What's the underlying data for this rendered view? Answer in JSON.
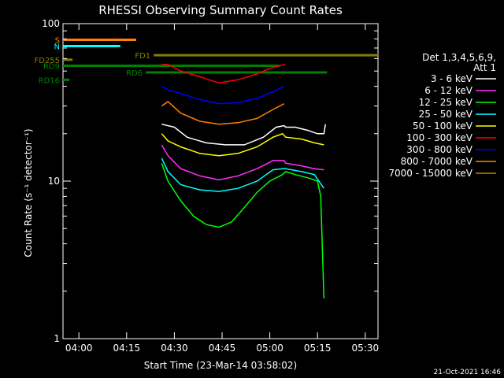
{
  "chart_data": {
    "type": "line",
    "title": "RHESSI Observing Summary Count Rates",
    "xlabel": "Start Time (23-Mar-14 03:58:02)",
    "ylabel": "Count Rate (s⁻¹ detector⁻¹)",
    "yscale": "log",
    "ylim": [
      1,
      100
    ],
    "xlim_minutes": [
      -3,
      96
    ],
    "x_ticks": [
      {
        "label": "04:00",
        "minutes": 2
      },
      {
        "label": "04:15",
        "minutes": 17
      },
      {
        "label": "04:30",
        "minutes": 32
      },
      {
        "label": "04:45",
        "minutes": 47
      },
      {
        "label": "05:00",
        "minutes": 62
      },
      {
        "label": "05:15",
        "minutes": 77
      },
      {
        "label": "05:30",
        "minutes": 92
      }
    ],
    "y_ticks": [
      {
        "label": "1",
        "value": 1
      },
      {
        "label": "10",
        "value": 10
      },
      {
        "label": "100",
        "value": 100
      }
    ],
    "legend_header": [
      "Det 1,3,4,5,6,9,",
      "Att 1"
    ],
    "legend_position": "right",
    "series": [
      {
        "name": "3 - 6 keV",
        "color": "#ffffff",
        "points": [
          [
            28,
            23
          ],
          [
            32,
            22
          ],
          [
            36,
            19
          ],
          [
            42,
            17.5
          ],
          [
            48,
            17
          ],
          [
            54,
            17
          ],
          [
            60,
            19
          ],
          [
            64,
            22
          ],
          [
            66.5,
            22.5
          ],
          [
            67,
            22
          ],
          [
            70,
            22
          ],
          [
            74,
            21
          ],
          [
            77,
            20
          ],
          [
            79,
            20
          ],
          [
            79.5,
            23
          ]
        ]
      },
      {
        "name": "6 - 12 keV",
        "color": "#ff30ff",
        "points": [
          [
            28,
            17
          ],
          [
            30,
            14.5
          ],
          [
            34,
            12
          ],
          [
            40,
            10.8
          ],
          [
            46,
            10.2
          ],
          [
            52,
            10.8
          ],
          [
            58,
            12
          ],
          [
            63,
            13.5
          ],
          [
            66.5,
            13.5
          ],
          [
            67,
            13
          ],
          [
            72,
            12.5
          ],
          [
            76,
            12
          ],
          [
            79,
            11.8
          ]
        ]
      },
      {
        "name": "12 - 25 keV",
        "color": "#00ff00",
        "points": [
          [
            28,
            13
          ],
          [
            30,
            10
          ],
          [
            34,
            7.5
          ],
          [
            38,
            6
          ],
          [
            42,
            5.3
          ],
          [
            46,
            5.1
          ],
          [
            50,
            5.5
          ],
          [
            54,
            6.8
          ],
          [
            58,
            8.5
          ],
          [
            62,
            10
          ],
          [
            66,
            11
          ],
          [
            67,
            11.5
          ],
          [
            70,
            11
          ],
          [
            74,
            10.5
          ],
          [
            77,
            10
          ],
          [
            78,
            8
          ],
          [
            79,
            1.8
          ]
        ]
      },
      {
        "name": "25 - 50 keV",
        "color": "#00ffff",
        "points": [
          [
            28,
            14
          ],
          [
            30,
            11.5
          ],
          [
            34,
            9.5
          ],
          [
            40,
            8.8
          ],
          [
            46,
            8.6
          ],
          [
            52,
            9
          ],
          [
            58,
            10
          ],
          [
            63,
            11.8
          ],
          [
            66,
            12
          ],
          [
            67,
            12
          ],
          [
            72,
            11.5
          ],
          [
            76,
            11
          ],
          [
            79,
            9
          ]
        ]
      },
      {
        "name": "50 - 100 keV",
        "color": "#ffff00",
        "points": [
          [
            28,
            20
          ],
          [
            30,
            18
          ],
          [
            34,
            16.5
          ],
          [
            40,
            15
          ],
          [
            46,
            14.5
          ],
          [
            52,
            15
          ],
          [
            58,
            16.5
          ],
          [
            63,
            19
          ],
          [
            66,
            20
          ],
          [
            67,
            19
          ],
          [
            72,
            18.5
          ],
          [
            76,
            17.5
          ],
          [
            79,
            17
          ]
        ]
      },
      {
        "name": "100 - 300 keV",
        "color": "#ff0000",
        "points": [
          [
            28,
            55
          ],
          [
            30,
            55
          ],
          [
            34,
            50
          ],
          [
            40,
            46
          ],
          [
            46,
            42
          ],
          [
            52,
            44
          ],
          [
            58,
            48
          ],
          [
            62,
            52
          ],
          [
            65,
            54
          ],
          [
            66.8,
            55
          ]
        ]
      },
      {
        "name": "300 - 800 keV",
        "color": "#0000ff",
        "points": [
          [
            28,
            40
          ],
          [
            30,
            38
          ],
          [
            34,
            36
          ],
          [
            40,
            33
          ],
          [
            46,
            31
          ],
          [
            52,
            31.5
          ],
          [
            58,
            33.5
          ],
          [
            63,
            37
          ],
          [
            66.5,
            40
          ]
        ]
      },
      {
        "name": "800 - 7000 keV",
        "color": "#ff8000",
        "points": [
          [
            28,
            30
          ],
          [
            30,
            32
          ],
          [
            34,
            27
          ],
          [
            40,
            24
          ],
          [
            46,
            23
          ],
          [
            52,
            23.5
          ],
          [
            58,
            25
          ],
          [
            63,
            28.5
          ],
          [
            66.5,
            31
          ]
        ]
      },
      {
        "name": "7000 - 15000 keV",
        "color": "#b8860b",
        "points": []
      }
    ],
    "state_bars": [
      {
        "name": "S",
        "color": "#ff8000",
        "value": 79,
        "x_start": -3,
        "x_end": 20
      },
      {
        "name": "N",
        "color": "#00ffff",
        "value": 72,
        "x_start": -3,
        "x_end": 15
      },
      {
        "name": "FD1",
        "color": "#808000",
        "value": 63,
        "x_start": 25.5,
        "x_end": 96
      },
      {
        "name": "FD255",
        "color": "#808000",
        "value": 59,
        "x_start": -3,
        "x_end": 0
      },
      {
        "name": "RD9",
        "color": "#008000",
        "value": 54,
        "x_start": -3,
        "x_end": 65
      },
      {
        "name": "RD6",
        "color": "#008000",
        "value": 49,
        "x_start": 23,
        "x_end": 80
      },
      {
        "name": "RD16",
        "color": "#008000",
        "value": 44,
        "x_start": -3,
        "x_end": -1
      }
    ],
    "later_segments": {
      "note_texts": []
    }
  },
  "footer_date": "21-Oct-2021 16:46",
  "colors": {
    "background": "#000000",
    "axes": "#ffffff"
  }
}
